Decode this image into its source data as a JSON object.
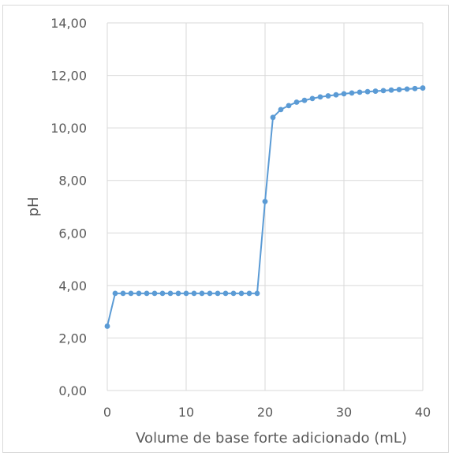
{
  "chart_data": {
    "type": "line",
    "title": "",
    "xlabel": "Volume de base forte adicionado (mL)",
    "ylabel": "pH",
    "xlim": [
      0,
      40
    ],
    "ylim": [
      0,
      14
    ],
    "x_ticks": [
      0,
      10,
      20,
      30,
      40
    ],
    "x_tick_labels": [
      "0",
      "10",
      "20",
      "30",
      "40"
    ],
    "y_ticks": [
      0,
      2,
      4,
      6,
      8,
      10,
      12,
      14
    ],
    "y_tick_labels": [
      "0,00",
      "2,00",
      "4,00",
      "6,00",
      "8,00",
      "10,00",
      "12,00",
      "14,00"
    ],
    "grid": true,
    "series_color": "#5b9bd5",
    "grid_color": "#d9d9d9",
    "series": [
      {
        "x": [
          0,
          1,
          2,
          3,
          4,
          5,
          6,
          7,
          8,
          9,
          10,
          11,
          12,
          13,
          14,
          15,
          16,
          17,
          18,
          19,
          20,
          21,
          22,
          23,
          24,
          25,
          26,
          27,
          28,
          29,
          30,
          31,
          32,
          33,
          34,
          35,
          36,
          37,
          38,
          39,
          40
        ],
        "y": [
          2.45,
          3.7,
          3.7,
          3.7,
          3.7,
          3.7,
          3.7,
          3.7,
          3.7,
          3.7,
          3.7,
          3.7,
          3.7,
          3.7,
          3.7,
          3.7,
          3.7,
          3.7,
          3.7,
          3.7,
          7.2,
          10.4,
          10.7,
          10.85,
          10.98,
          11.05,
          11.12,
          11.18,
          11.22,
          11.26,
          11.3,
          11.33,
          11.36,
          11.38,
          11.4,
          11.42,
          11.44,
          11.46,
          11.48,
          11.5,
          11.52
        ]
      }
    ]
  }
}
